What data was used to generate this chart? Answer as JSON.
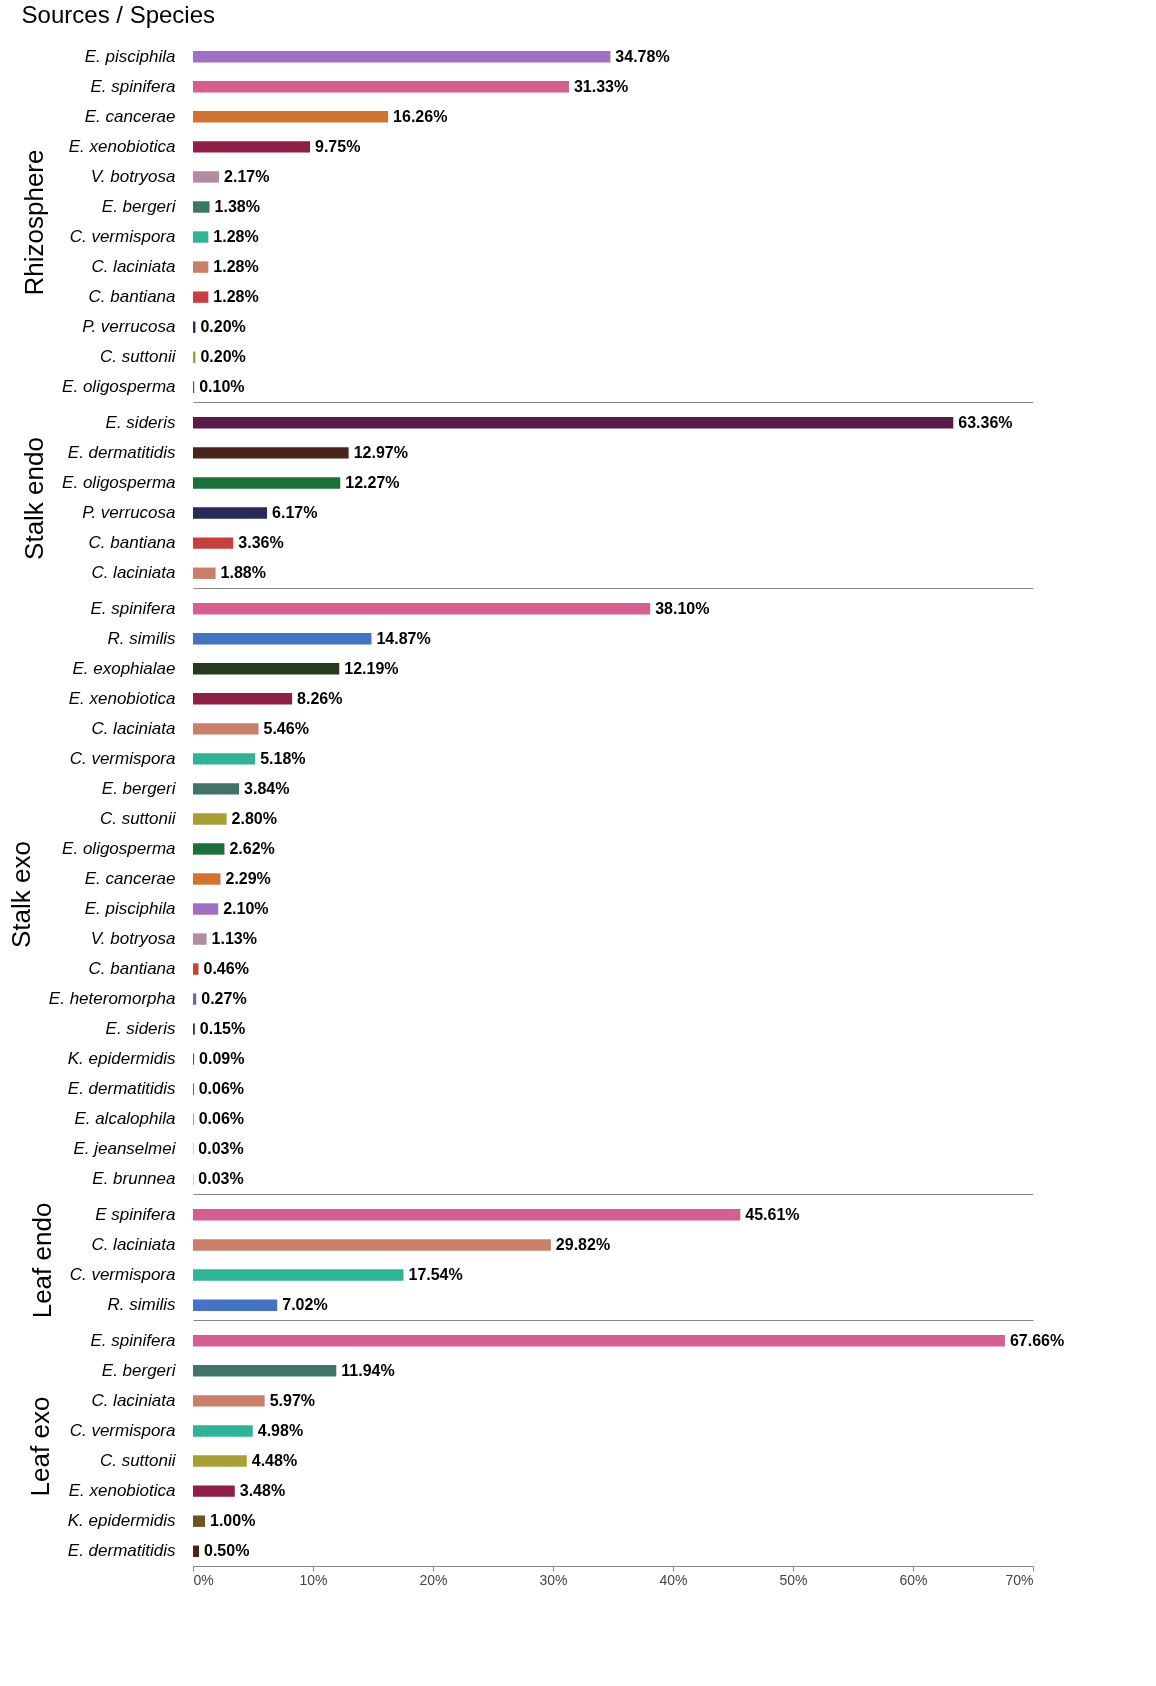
{
  "chart_data": [
    {
      "type": "bar",
      "orientation": "horizontal",
      "title": "Sources / Species",
      "ylabel": "Rhizosphere",
      "tick_labels": "y",
      "grid": false,
      "xlim": [
        0,
        70
      ],
      "categories": [
        "E. pisciphila",
        "E. spinifera",
        "E. cancerae",
        "E. xenobiotica",
        "V. botryosa",
        "E. bergeri",
        "C. vermispora",
        "C. laciniata",
        "C. bantiana",
        "P. verrucosa",
        "C. suttonii",
        "E. oligosperma"
      ],
      "values": [
        34.78,
        31.33,
        16.26,
        9.75,
        2.17,
        1.38,
        1.28,
        1.28,
        1.28,
        0.2,
        0.2,
        0.1
      ],
      "value_labels": [
        "34.78%",
        "31.33%",
        "16.26%",
        "9.75%",
        "2.17%",
        "1.38%",
        "1.28%",
        "1.28%",
        "1.28%",
        "0.20%",
        "0.20%",
        "0.10%"
      ],
      "colors": [
        "#a070c4",
        "#d65f90",
        "#d2722c",
        "#901e46",
        "#b38a9f",
        "#3f7468",
        "#2fb496",
        "#c97f68",
        "#c8403e",
        "#2a2a5a",
        "#a8a033",
        "#1a7038"
      ]
    },
    {
      "type": "bar",
      "orientation": "horizontal",
      "ylabel": "Stalk endo",
      "tick_labels": "y",
      "grid": false,
      "xlim": [
        0,
        70
      ],
      "categories": [
        "E. sideris",
        "E. dermatitidis",
        "E. oligosperma",
        "P. verrucosa",
        "C. bantiana",
        "C. laciniata"
      ],
      "values": [
        63.36,
        12.97,
        12.27,
        6.17,
        3.36,
        1.88
      ],
      "value_labels": [
        "63.36%",
        "12.97%",
        "12.27%",
        "6.17%",
        "3.36%",
        "1.88%"
      ],
      "colors": [
        "#5b1a4c",
        "#4a2418",
        "#1a7038",
        "#2a2a5a",
        "#c8403e",
        "#c97f68"
      ]
    },
    {
      "type": "bar",
      "orientation": "horizontal",
      "ylabel": "Stalk exo",
      "tick_labels": "y",
      "grid": false,
      "xlim": [
        0,
        70
      ],
      "categories": [
        "E. spinifera",
        "R. similis",
        "E. exophialae",
        "E. xenobiotica",
        "C. laciniata",
        "C. vermispora",
        "E. bergeri",
        "C. suttonii",
        "E. oligosperma",
        "E. cancerae",
        "E. pisciphila",
        "V. botryosa",
        "C. bantiana",
        "E. heteromorpha",
        "E. sideris",
        "K. epidermidis",
        "E. dermatitidis",
        "E. alcalophila",
        "E. jeanselmei",
        "E. brunnea"
      ],
      "values": [
        38.1,
        14.87,
        12.19,
        8.26,
        5.46,
        5.18,
        3.84,
        2.8,
        2.62,
        2.29,
        2.1,
        1.13,
        0.46,
        0.27,
        0.15,
        0.09,
        0.06,
        0.06,
        0.03,
        0.03
      ],
      "value_labels": [
        "38.10%",
        "14.87%",
        "12.19%",
        "8.26%",
        "5.46%",
        "5.18%",
        "3.84%",
        "2.80%",
        "2.62%",
        "2.29%",
        "2.10%",
        "1.13%",
        "0.46%",
        "0.27%",
        "0.15%",
        "0.09%",
        "0.06%",
        "0.06%",
        "0.03%",
        "0.03%"
      ],
      "colors": [
        "#d65f90",
        "#4472c4",
        "#263a1e",
        "#901e46",
        "#c97f68",
        "#2fb496",
        "#3f7468",
        "#a8a033",
        "#1a7038",
        "#d2722c",
        "#a070c4",
        "#b38a9f",
        "#c8403e",
        "#6a6ab0",
        "#5b1a4c",
        "#6b5420",
        "#4a2418",
        "#7a7a7a",
        "#7a7a7a",
        "#7a7a7a"
      ]
    },
    {
      "type": "bar",
      "orientation": "horizontal",
      "ylabel": "Leaf endo",
      "tick_labels": "y",
      "grid": false,
      "xlim": [
        0,
        70
      ],
      "categories": [
        "E spinifera",
        "C. laciniata",
        "C. vermispora",
        "R. similis"
      ],
      "values": [
        45.61,
        29.82,
        17.54,
        7.02
      ],
      "value_labels": [
        "45.61%",
        "29.82%",
        "17.54%",
        "7.02%"
      ],
      "colors": [
        "#d65f90",
        "#c97f68",
        "#2fb496",
        "#4472c4"
      ]
    },
    {
      "type": "bar",
      "orientation": "horizontal",
      "ylabel": "Leaf exo",
      "grid": false,
      "xlim": [
        0,
        70
      ],
      "xticks": [
        {
          "value": 0,
          "label": "0%"
        },
        {
          "value": 10,
          "label": "10%"
        },
        {
          "value": 20,
          "label": "20%"
        },
        {
          "value": 30,
          "label": "30%"
        },
        {
          "value": 40,
          "label": "40%"
        },
        {
          "value": 50,
          "label": "50%"
        },
        {
          "value": 60,
          "label": "60%"
        },
        {
          "value": 70,
          "label": "70%"
        }
      ],
      "categories": [
        "E. spinifera",
        "E. bergeri",
        "C. laciniata",
        "C. vermispora",
        "C. suttonii",
        "E. xenobiotica",
        "K. epidermidis",
        "E. dermatitidis"
      ],
      "values": [
        67.66,
        11.94,
        5.97,
        4.98,
        4.48,
        3.48,
        1.0,
        0.5
      ],
      "value_labels": [
        "67.66%",
        "11.94%",
        "5.97%",
        "4.98%",
        "4.48%",
        "3.48%",
        "1.00%",
        "0.50%"
      ],
      "colors": [
        "#d65f90",
        "#3f7468",
        "#c97f68",
        "#2fb496",
        "#a8a033",
        "#901e46",
        "#6b5420",
        "#4a2418"
      ]
    }
  ]
}
